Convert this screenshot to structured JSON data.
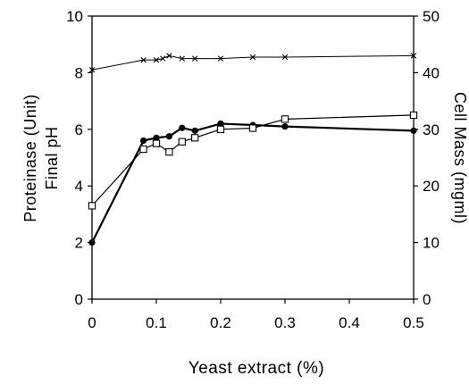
{
  "chart_data": {
    "type": "line",
    "xlabel": "Yeast extract (%)",
    "ylabel_left": [
      "Proteinase (Unit)",
      "Final pH"
    ],
    "ylabel_right": "Cell Mass (mgml)",
    "xlim": [
      0,
      0.5
    ],
    "ylim_left": [
      0,
      10
    ],
    "ylim_right": [
      0,
      50
    ],
    "x_ticks": [
      "0",
      "0.1",
      "0.2",
      "0.3",
      "0.4",
      "0.5"
    ],
    "y_ticks_left": [
      "0",
      "2",
      "4",
      "6",
      "8",
      "10"
    ],
    "y_ticks_right": [
      "0",
      "10",
      "20",
      "30",
      "40",
      "50"
    ],
    "grid": false,
    "series": [
      {
        "axis": "left",
        "marker": "filled-circle",
        "color": "#000000",
        "line_width": 2.2,
        "x": [
          0,
          0.08,
          0.1,
          0.12,
          0.14,
          0.16,
          0.2,
          0.25,
          0.3,
          0.5
        ],
        "y": [
          2.0,
          5.6,
          5.7,
          5.75,
          6.05,
          5.95,
          6.2,
          6.15,
          6.1,
          5.95
        ]
      },
      {
        "axis": "right",
        "marker": "open-square",
        "color": "#000000",
        "line_width": 1.2,
        "x": [
          0,
          0.08,
          0.1,
          0.12,
          0.14,
          0.16,
          0.2,
          0.25,
          0.3,
          0.5
        ],
        "y": [
          16.5,
          26.5,
          27.5,
          26.0,
          27.8,
          28.5,
          30.0,
          30.2,
          31.8,
          32.5
        ]
      },
      {
        "axis": "left",
        "marker": "x",
        "color": "#000000",
        "line_width": 1.0,
        "x": [
          0,
          0.08,
          0.1,
          0.11,
          0.12,
          0.14,
          0.16,
          0.2,
          0.25,
          0.3,
          0.5
        ],
        "y": [
          8.1,
          8.45,
          8.45,
          8.5,
          8.6,
          8.5,
          8.5,
          8.5,
          8.55,
          8.55,
          8.6
        ]
      }
    ]
  }
}
